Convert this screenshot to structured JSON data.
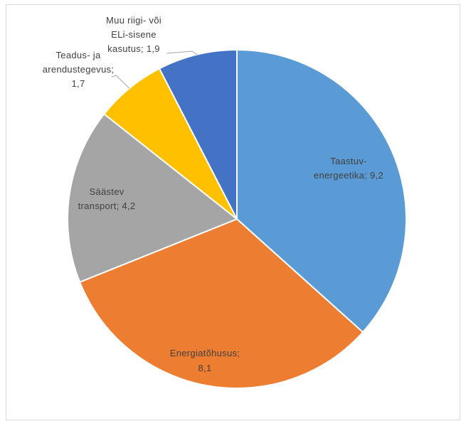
{
  "chart_data": {
    "type": "pie",
    "title": "",
    "legend": "none",
    "colors": [
      "#5B9BD5",
      "#ED7D31",
      "#A5A5A5",
      "#FFC000",
      "#4472C4"
    ],
    "slices": [
      {
        "name": "Taastuv-energeetika",
        "value": 9.2,
        "label_lines": [
          "Taastuv-",
          "energeetika; 9,2"
        ]
      },
      {
        "name": "Energiatõhusus",
        "value": 8.1,
        "label_lines": [
          "Energiatõhusus;",
          "8,1"
        ]
      },
      {
        "name": "Säästev transport",
        "value": 4.2,
        "label_lines": [
          "Säästev",
          "transport; 4,2"
        ]
      },
      {
        "name": "Teadus- ja arendustegevus",
        "value": 1.7,
        "label_lines": [
          "Teadus- ja",
          "arendustegevus;",
          "1,7"
        ]
      },
      {
        "name": "Muu riigi- või ELi-sisene kasutus",
        "value": 1.9,
        "label_lines": [
          "Muu riigi- või",
          "ELi-sisene",
          "kasutus; 1,9"
        ]
      }
    ]
  }
}
